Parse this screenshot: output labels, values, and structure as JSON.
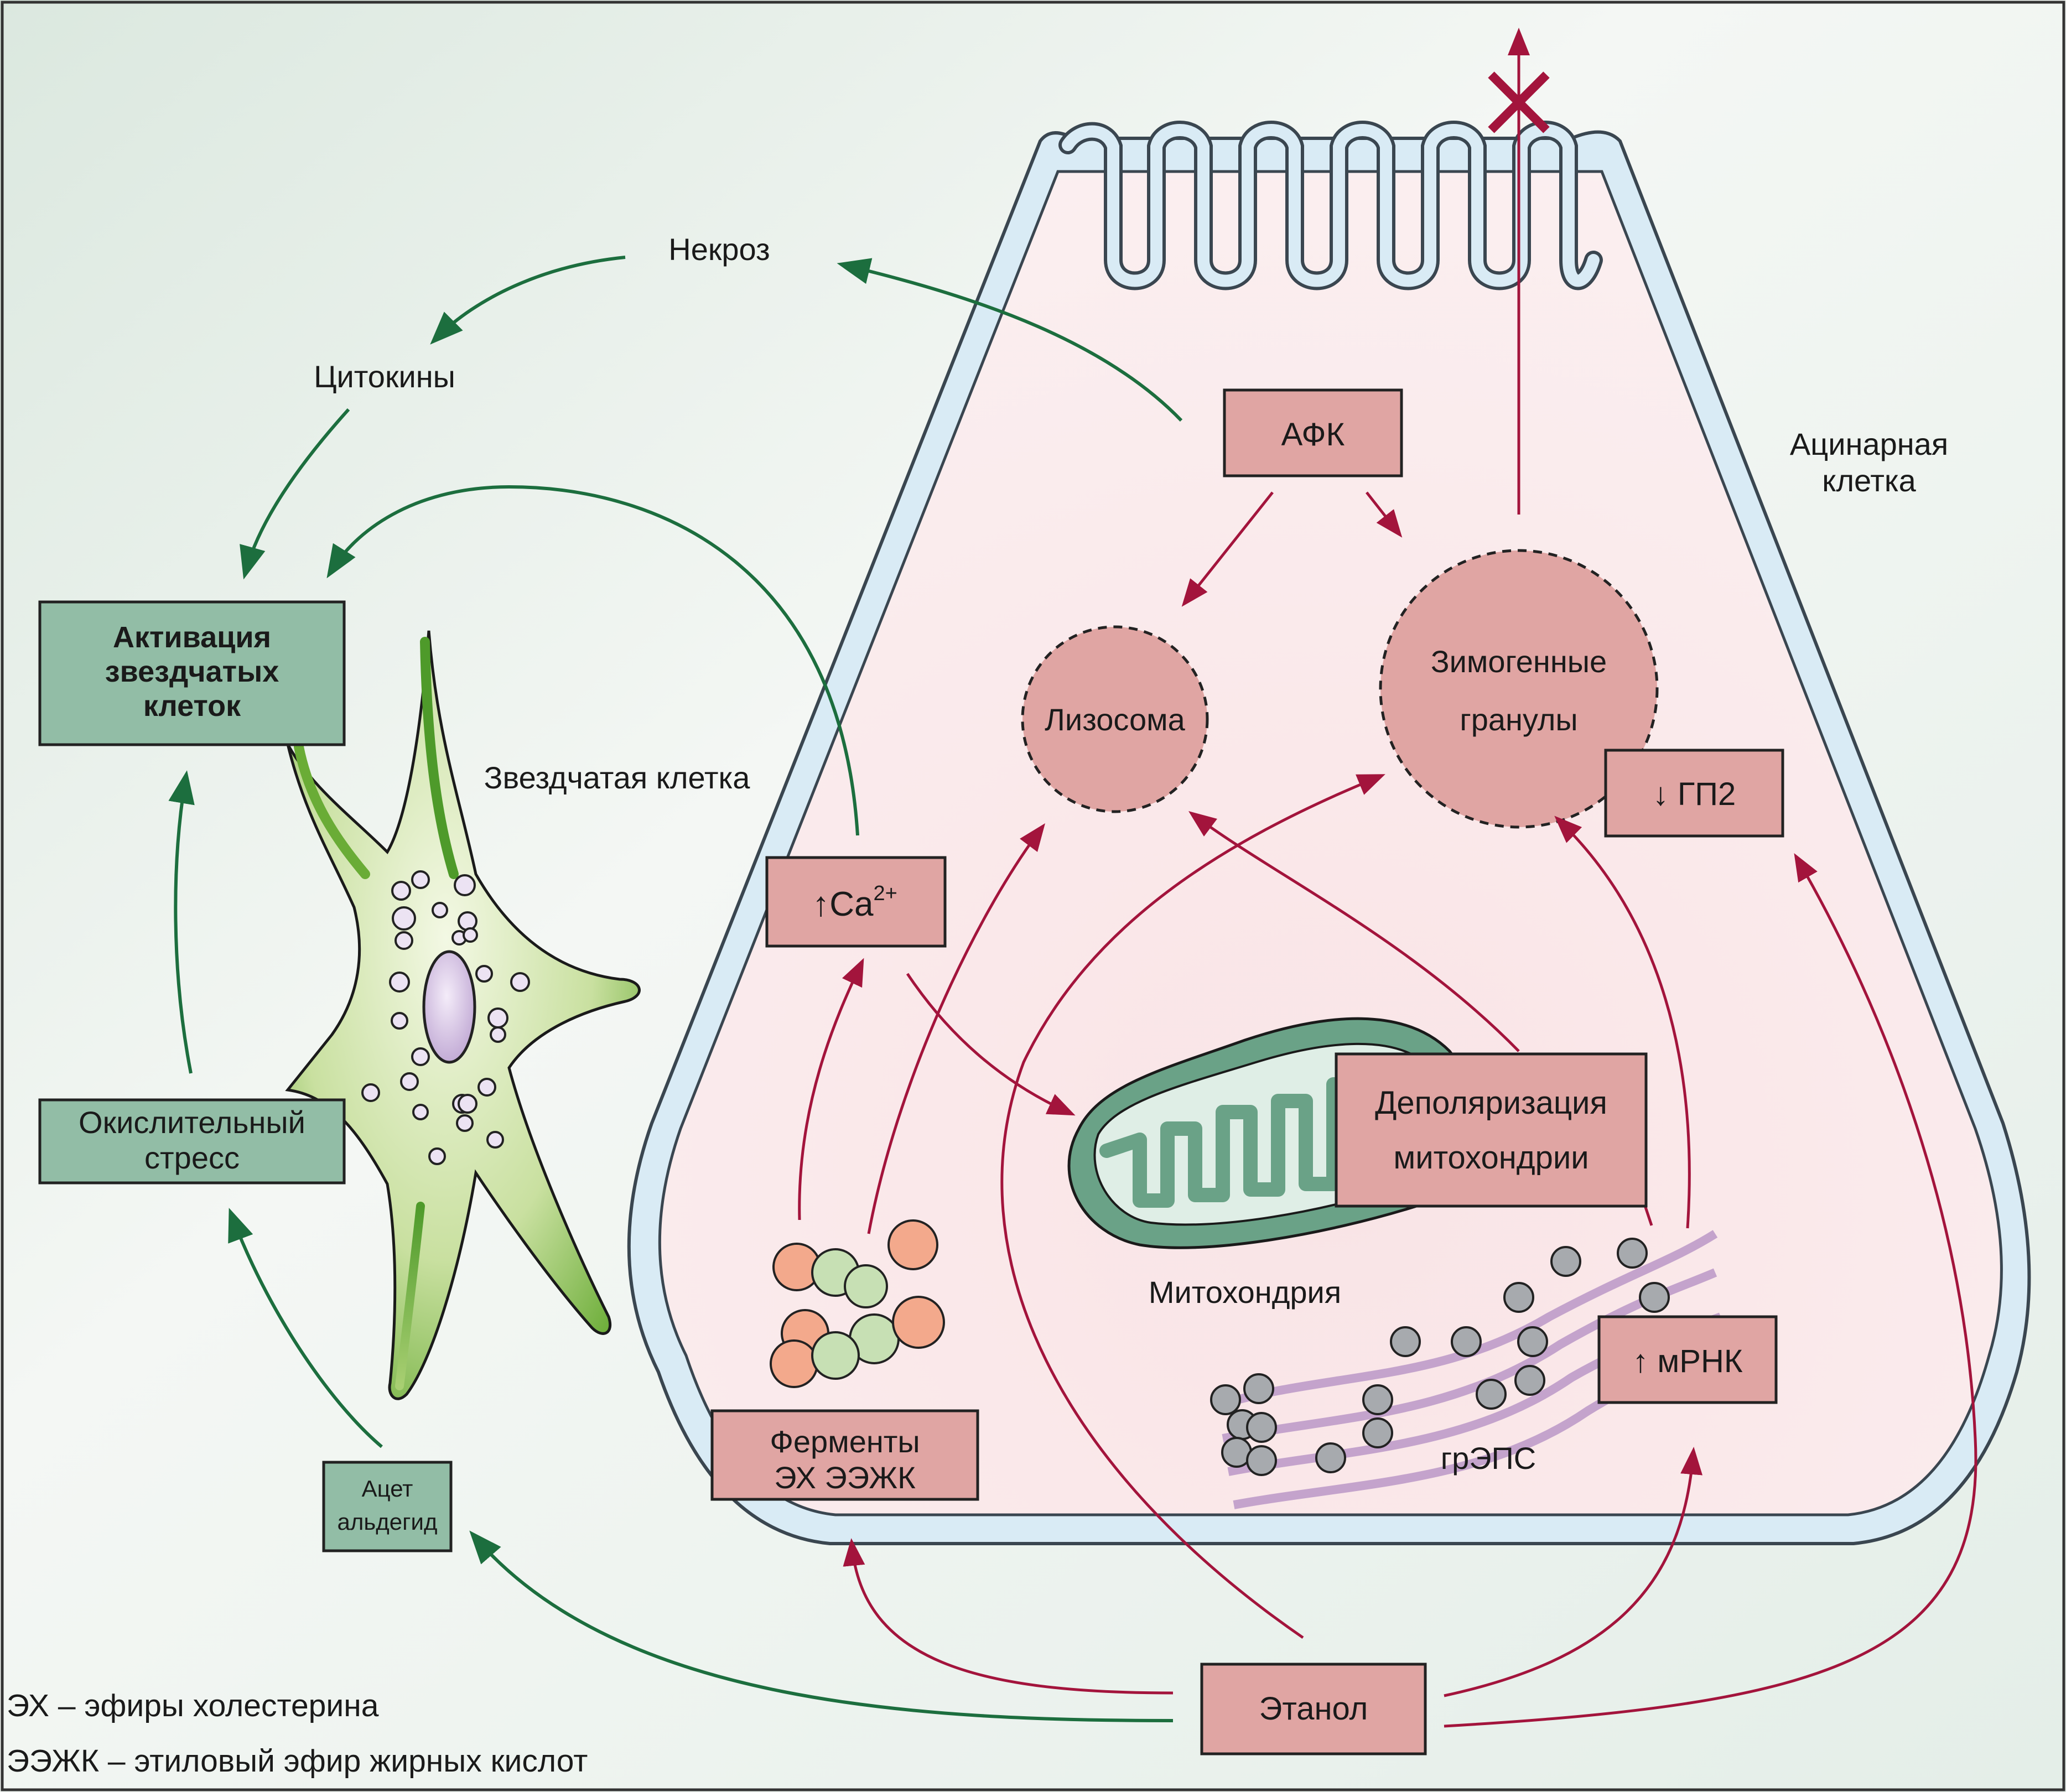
{
  "labels": {
    "necrosis": "Некроз",
    "cytokines": "Цитокины",
    "stellate_activation": [
      "Активация",
      "звездчатых",
      "клеток"
    ],
    "stellate_cell": "Звездчатая клетка",
    "oxidative_stress": [
      "Окислительный",
      "стресс"
    ],
    "acetaldehyde": [
      "Ацет",
      "альдегид"
    ],
    "ros": "АФК",
    "acinar_cell": [
      "Ацинарная",
      "клетка"
    ],
    "lysosome": "Лизосома",
    "zymogen_granules": [
      "Зимогенные",
      "гранулы"
    ],
    "gp2": "↓ ГП2",
    "calcium": "↑Ca",
    "calcium_sup": "2+",
    "mito_depolarization": [
      "Деполяризация",
      "митохондрии"
    ],
    "mitochondrion": "Митохондрия",
    "mrna": "↑ мРНК",
    "rer": "грЭПС",
    "enzymes": [
      "Ферменты",
      "ЭХ ЭЭЖК"
    ],
    "ethanol": "Этанол"
  },
  "legend": [
    "ЭХ – эфиры холестерина",
    "ЭЭЖК – этиловый эфир жирных кислот"
  ],
  "colors": {
    "green_arrow": "#1c6e3e",
    "red_arrow": "#a3143c",
    "pink_box": "#e0a5a3",
    "green_box": "#92bda6",
    "cell_fill": "#f8e2e4",
    "membrane": "#d9ebf5",
    "stellate_green": "#7cb847"
  }
}
